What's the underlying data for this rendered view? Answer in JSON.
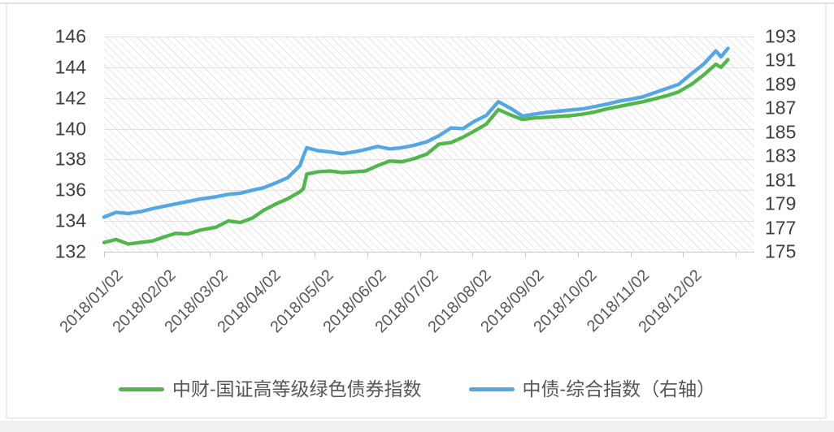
{
  "chart_data": {
    "type": "line",
    "title": "",
    "grid": "horizontal",
    "legend_position": "bottom",
    "plot_background": "diagonal-hatch",
    "left_axis": {
      "min": 132,
      "max": 146,
      "ticks": [
        146,
        144,
        142,
        140,
        138,
        136,
        134,
        132
      ]
    },
    "right_axis": {
      "min": 175,
      "max": 193,
      "ticks": [
        193,
        191,
        189,
        187,
        185,
        183,
        181,
        179,
        177,
        175
      ]
    },
    "x_tick_labels": [
      "2018/01/02",
      "2018/02/02",
      "2018/03/02",
      "2018/04/02",
      "2018/05/02",
      "2018/06/02",
      "2018/07/02",
      "2018/08/02",
      "2018/09/02",
      "2018/10/02",
      "2018/11/02",
      "2018/12/02"
    ],
    "dates": [
      "2018/01/02",
      "2018/01/09",
      "2018/01/16",
      "2018/01/23",
      "2018/01/30",
      "2018/02/06",
      "2018/02/13",
      "2018/02/20",
      "2018/02/27",
      "2018/03/06",
      "2018/03/13",
      "2018/03/20",
      "2018/03/27",
      "2018/04/03",
      "2018/04/10",
      "2018/04/17",
      "2018/04/24",
      "2018/04/26",
      "2018/04/28",
      "2018/05/04",
      "2018/05/11",
      "2018/05/18",
      "2018/05/25",
      "2018/06/01",
      "2018/06/08",
      "2018/06/15",
      "2018/06/22",
      "2018/06/29",
      "2018/07/06",
      "2018/07/13",
      "2018/07/20",
      "2018/07/27",
      "2018/08/03",
      "2018/08/10",
      "2018/08/17",
      "2018/08/24",
      "2018/08/31",
      "2018/09/07",
      "2018/09/14",
      "2018/09/21",
      "2018/09/28",
      "2018/10/05",
      "2018/10/12",
      "2018/10/19",
      "2018/10/26",
      "2018/11/02",
      "2018/11/09",
      "2018/11/16",
      "2018/11/23",
      "2018/11/30",
      "2018/12/07",
      "2018/12/14",
      "2018/12/21",
      "2018/12/24",
      "2018/12/28"
    ],
    "series": [
      {
        "name": "中财-国证高等级绿色债券指数",
        "axis": "left",
        "color": "#52b74a",
        "values": [
          132.6,
          132.8,
          132.5,
          132.6,
          132.7,
          132.95,
          133.2,
          133.15,
          133.4,
          133.6,
          134.0,
          133.9,
          134.2,
          134.7,
          135.1,
          135.45,
          135.9,
          136.1,
          137.05,
          137.2,
          137.25,
          137.15,
          137.2,
          137.25,
          137.6,
          137.9,
          137.85,
          138.05,
          138.35,
          139.0,
          139.1,
          139.45,
          139.85,
          140.3,
          141.25,
          140.9,
          140.6,
          140.7,
          140.75,
          140.8,
          140.85,
          140.95,
          141.1,
          141.3,
          141.45,
          141.6,
          141.75,
          141.95,
          142.15,
          142.4,
          142.9,
          143.5,
          144.2,
          144.0,
          144.5
        ]
      },
      {
        "name": "中债-综合指数（右轴）",
        "axis": "right",
        "color": "#55a7e3",
        "values": [
          177.9,
          178.3,
          178.2,
          178.35,
          178.6,
          178.8,
          179.0,
          179.2,
          179.4,
          179.6,
          179.8,
          179.9,
          180.15,
          180.35,
          180.75,
          181.2,
          182.2,
          183.0,
          183.7,
          183.45,
          183.35,
          183.2,
          183.35,
          183.55,
          183.8,
          183.6,
          183.7,
          183.9,
          184.2,
          184.7,
          185.35,
          185.3,
          185.9,
          186.4,
          187.55,
          187.0,
          186.35,
          186.5,
          186.65,
          186.75,
          186.85,
          186.95,
          187.15,
          187.35,
          187.6,
          187.75,
          187.95,
          188.3,
          188.65,
          189.0,
          189.9,
          190.7,
          191.8,
          191.3,
          192.0
        ]
      }
    ]
  }
}
